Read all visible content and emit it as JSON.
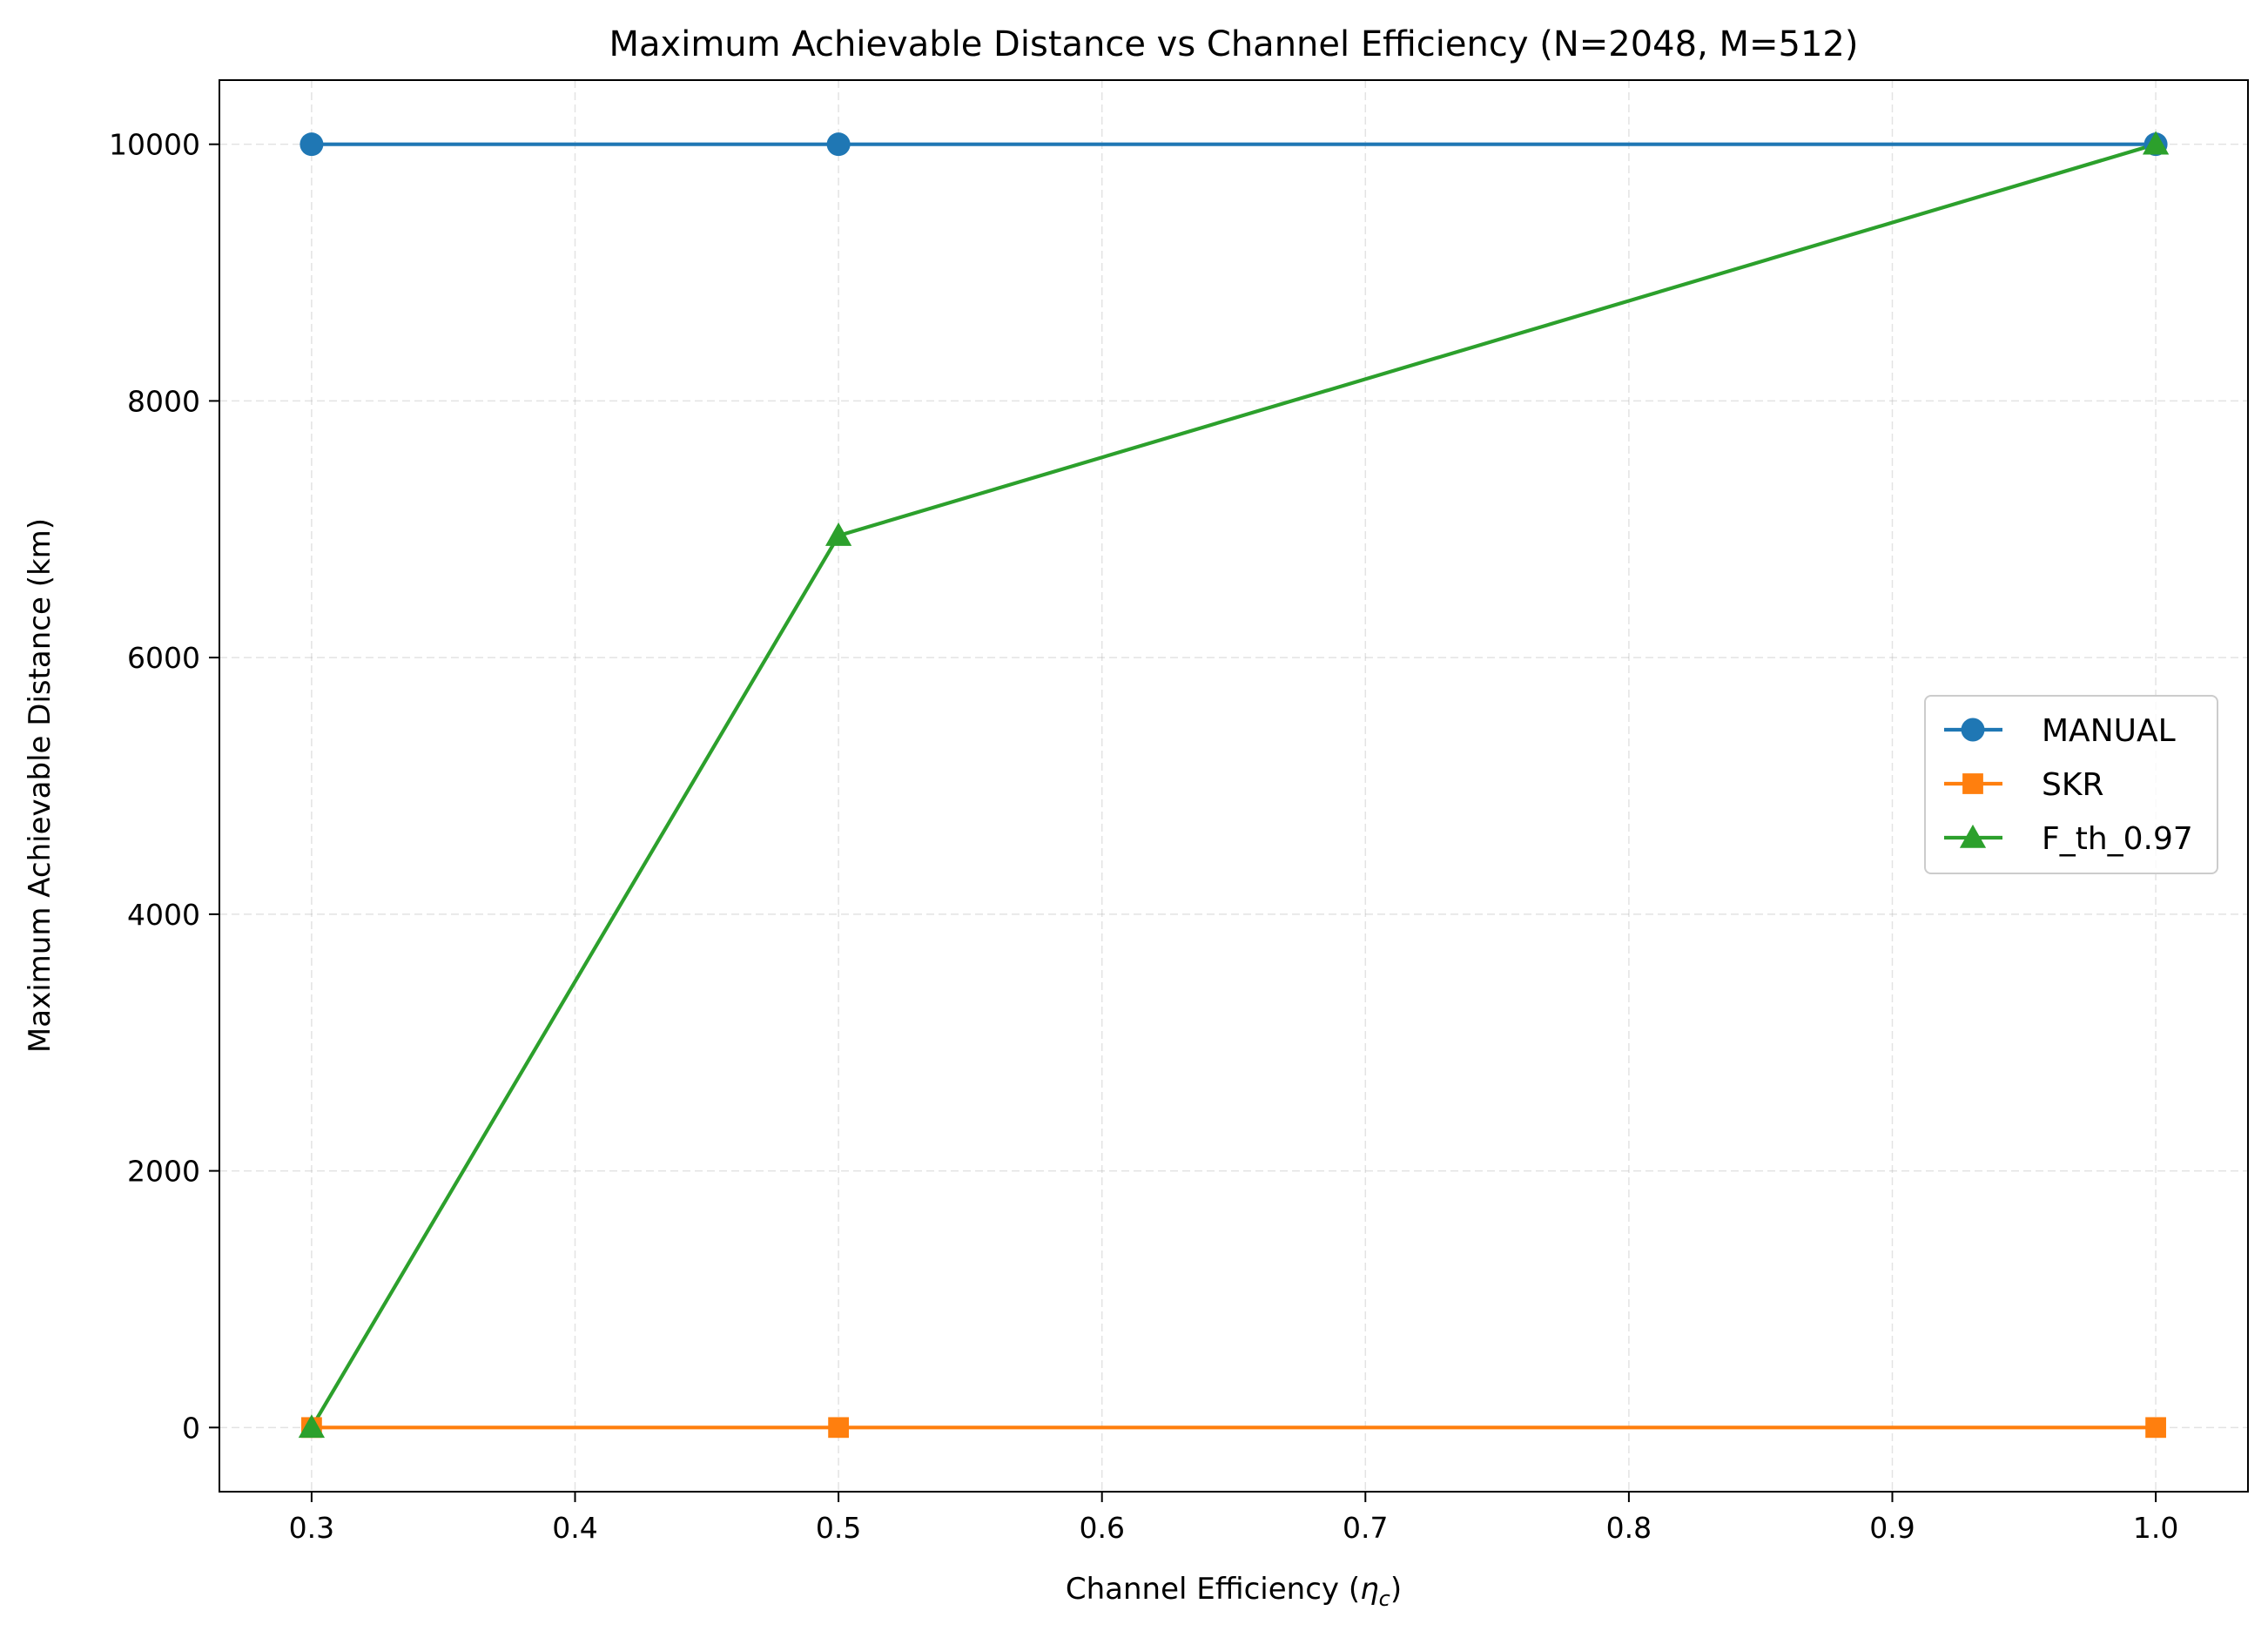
{
  "chart_data": {
    "type": "line",
    "title": "Maximum Achievable Distance vs Channel Efficiency (N=2048, M=512)",
    "xlabel": "Channel Efficiency (",
    "xlabel_symbol": "η",
    "xlabel_subscript": "c",
    "xlabel_suffix": ")",
    "ylabel": "Maximum Achievable Distance (km)",
    "xlim": [
      0.265,
      1.035
    ],
    "ylim": [
      -500,
      10500
    ],
    "x_ticks": [
      0.3,
      0.4,
      0.5,
      0.6,
      0.7,
      0.8,
      0.9,
      1.0
    ],
    "x_tick_labels": [
      "0.3",
      "0.4",
      "0.5",
      "0.6",
      "0.7",
      "0.8",
      "0.9",
      "1.0"
    ],
    "y_ticks": [
      0,
      2000,
      4000,
      6000,
      8000,
      10000
    ],
    "y_tick_labels": [
      "0",
      "2000",
      "4000",
      "6000",
      "8000",
      "10000"
    ],
    "grid": true,
    "legend_position": "center-right",
    "series": [
      {
        "name": "MANUAL",
        "color": "#1f77b4",
        "marker": "circle",
        "x": [
          0.3,
          0.5,
          1.0
        ],
        "y": [
          10000,
          10000,
          10000
        ]
      },
      {
        "name": "SKR",
        "color": "#ff7f0e",
        "marker": "square",
        "x": [
          0.3,
          0.5,
          1.0
        ],
        "y": [
          0,
          0,
          0
        ]
      },
      {
        "name": "F_th_0.97",
        "color": "#2ca02c",
        "marker": "triangle",
        "x": [
          0.3,
          0.5,
          1.0
        ],
        "y": [
          0,
          6950,
          10000
        ]
      }
    ]
  }
}
